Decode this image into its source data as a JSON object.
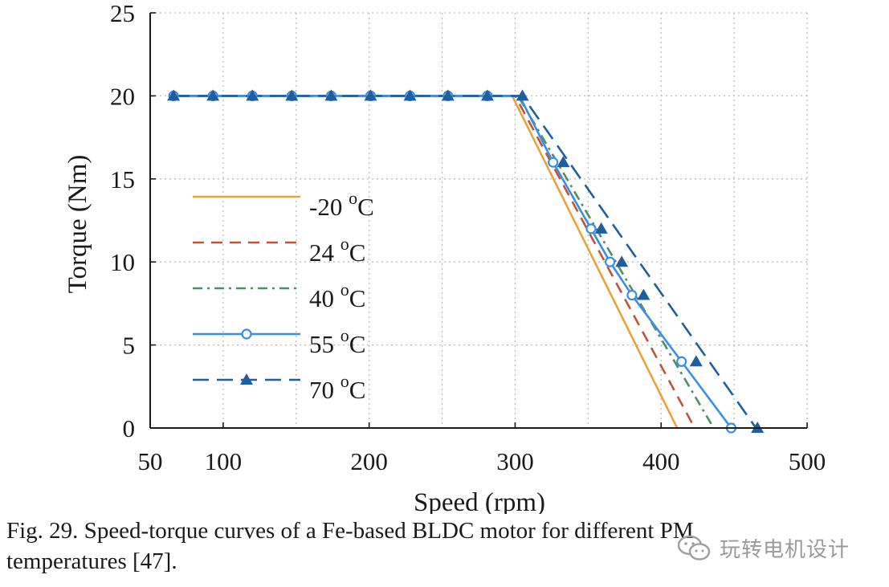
{
  "chart_data": {
    "type": "line",
    "title": "",
    "xlabel": "Speed (rpm)",
    "ylabel": "Torque (Nm)",
    "xlim": [
      50,
      500
    ],
    "ylim": [
      0,
      25
    ],
    "x_ticks": [
      50,
      100,
      200,
      300,
      400,
      500
    ],
    "x_tick_labels": [
      "50",
      "100",
      "200",
      "300",
      "400",
      "500"
    ],
    "y_ticks": [
      0,
      5,
      10,
      15,
      20,
      25
    ],
    "y_tick_labels": [
      "0",
      "5",
      "10",
      "15",
      "20",
      "25"
    ],
    "x_grid": [
      100,
      150,
      200,
      250,
      300,
      350,
      400,
      450,
      500
    ],
    "grid": true,
    "legend_position": "left",
    "series": [
      {
        "name": "-20 °C",
        "legend_main": "-20 ",
        "legend_sup": "o",
        "legend_unit": "C",
        "color": "#e8a33d",
        "dash": "solid",
        "marker": "none",
        "x": [
          66,
          298,
          411
        ],
        "y": [
          20,
          20,
          0
        ]
      },
      {
        "name": "24 °C",
        "legend_main": "24 ",
        "legend_sup": "o",
        "legend_unit": "C",
        "color": "#c0533a",
        "dash": "dashed",
        "marker": "none",
        "x": [
          66,
          300,
          423
        ],
        "y": [
          20,
          20,
          0
        ]
      },
      {
        "name": "40 °C",
        "legend_main": "40 ",
        "legend_sup": "o",
        "legend_unit": "C",
        "color": "#4e8f62",
        "dash": "dashdot",
        "marker": "none",
        "x": [
          66,
          302,
          436
        ],
        "y": [
          20,
          20,
          0
        ]
      },
      {
        "name": "55 °C",
        "legend_main": "55 ",
        "legend_sup": "o",
        "legend_unit": "C",
        "color": "#3a8ee6",
        "dash": "solid",
        "marker": "circle",
        "x": [
          66,
          303,
          326,
          352,
          365,
          380,
          414,
          448
        ],
        "y": [
          20,
          20,
          16,
          12,
          10,
          8,
          4,
          0
        ],
        "marker_x": [
          66,
          93,
          120,
          147,
          174,
          201,
          228,
          254,
          281,
          326,
          352,
          365,
          380,
          414,
          448
        ],
        "marker_y": [
          20,
          20,
          20,
          20,
          20,
          20,
          20,
          20,
          20,
          16,
          12,
          10,
          8,
          4,
          0
        ]
      },
      {
        "name": "70 °C",
        "legend_main": "70 ",
        "legend_sup": "o",
        "legend_unit": "C",
        "color": "#1f5f9e",
        "dash": "longdash",
        "marker": "triangle",
        "x": [
          66,
          305,
          465
        ],
        "y": [
          20,
          20,
          0
        ],
        "marker_x": [
          66,
          93,
          120,
          147,
          174,
          201,
          228,
          254,
          281,
          305,
          333,
          359,
          373,
          388,
          424,
          466
        ],
        "marker_y": [
          20,
          20,
          20,
          20,
          20,
          20,
          20,
          20,
          20,
          20,
          16,
          12,
          10,
          8,
          4,
          0
        ]
      }
    ]
  },
  "caption": {
    "line1": "Fig. 29.  Speed-torque curves of a Fe-based BLDC motor for different PM",
    "line2": "temperatures [47]."
  },
  "watermark": {
    "text": "玩转电机设计",
    "icon": "wechat-icon"
  }
}
